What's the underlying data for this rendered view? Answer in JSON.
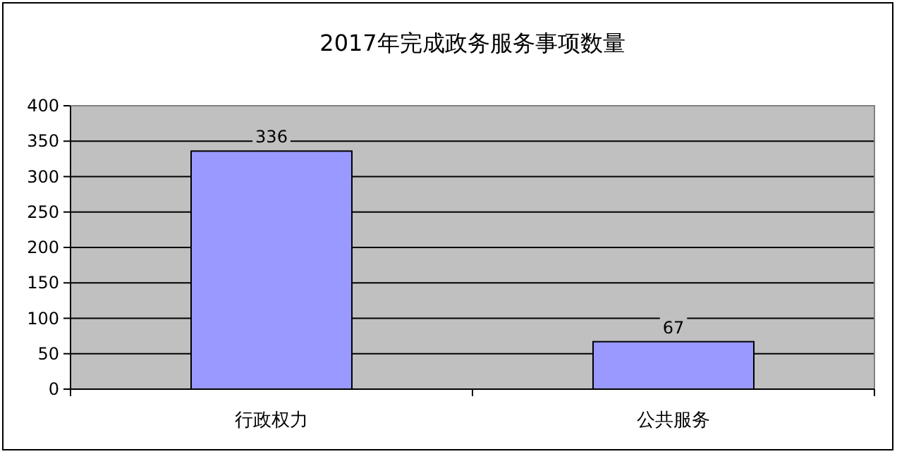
{
  "chart_data": {
    "type": "bar",
    "title": "2017年完成政务服务事项数量",
    "categories": [
      "行政权力",
      "公共服务"
    ],
    "values": [
      336,
      67
    ],
    "color": "#9999ff",
    "ylim": [
      0,
      400
    ],
    "yticks": [
      0,
      50,
      100,
      150,
      200,
      250,
      300,
      350,
      400
    ],
    "grid": "y",
    "data_labels": true
  }
}
